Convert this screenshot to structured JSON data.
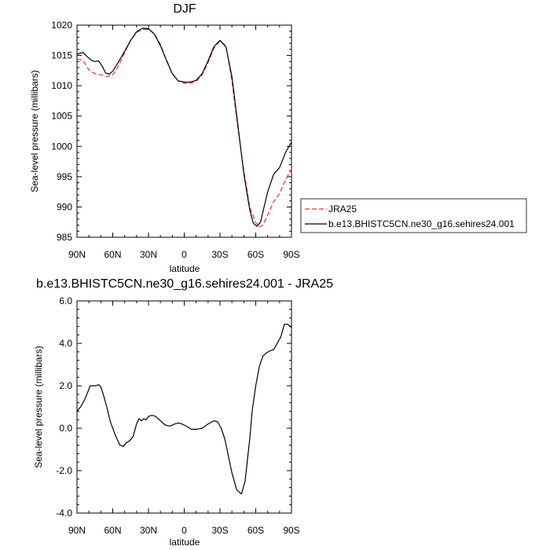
{
  "chart_data": [
    {
      "type": "line",
      "title": "DJF",
      "xlabel": "latitude",
      "ylabel": "Sea-level pressure (millibars)",
      "xlim": [
        90,
        -90
      ],
      "ylim": [
        985,
        1020
      ],
      "x_ticks": [
        90,
        60,
        30,
        0,
        -30,
        -60,
        -90
      ],
      "x_tick_labels": [
        "90N",
        "60N",
        "30N",
        "0",
        "30S",
        "60S",
        "90S"
      ],
      "y_ticks": [
        985,
        990,
        995,
        1000,
        1005,
        1010,
        1015,
        1020
      ],
      "y_tick_labels": [
        "985",
        "990",
        "995",
        "1000",
        "1005",
        "1010",
        "1015",
        "1020"
      ],
      "legend": "right",
      "series": [
        {
          "name": "JRA25",
          "color": "#e8302c",
          "style": "dashed",
          "x": [
            90,
            85,
            80,
            75,
            70,
            65,
            60,
            55,
            50,
            45,
            40,
            35,
            30,
            25,
            20,
            15,
            10,
            5,
            0,
            -5,
            -10,
            -15,
            -20,
            -25,
            -30,
            -35,
            -40,
            -45,
            -50,
            -55,
            -60,
            -63,
            -66,
            -70,
            -75,
            -80,
            -85,
            -90
          ],
          "y": [
            1014.4,
            1014.2,
            1012.6,
            1012.0,
            1011.8,
            1011.5,
            1011.8,
            1013.3,
            1015.5,
            1017.5,
            1018.8,
            1019.3,
            1019.3,
            1018.6,
            1016.8,
            1014.3,
            1012.0,
            1010.8,
            1010.4,
            1010.4,
            1010.7,
            1011.8,
            1013.8,
            1016.2,
            1017.4,
            1016.6,
            1010.8,
            1003.0,
            996.0,
            990.0,
            987.4,
            986.7,
            987.0,
            988.7,
            990.9,
            992.2,
            994.5,
            996.2
          ]
        },
        {
          "name": "b.e13.BHISTC5CN.ne30_g16.sehires24.001",
          "color": "#000000",
          "style": "solid",
          "x": [
            90,
            85,
            82,
            78,
            75,
            72,
            69,
            66,
            63,
            60,
            55,
            50,
            45,
            40,
            35,
            30,
            25,
            20,
            15,
            10,
            5,
            0,
            -5,
            -10,
            -15,
            -20,
            -25,
            -30,
            -35,
            -40,
            -45,
            -50,
            -55,
            -58,
            -61,
            -64,
            -67,
            -70,
            -75,
            -80,
            -85,
            -90
          ],
          "y": [
            1015.2,
            1015.5,
            1014.9,
            1014.2,
            1014.0,
            1014.1,
            1013.3,
            1012.1,
            1011.9,
            1012.4,
            1014.0,
            1015.7,
            1017.5,
            1018.9,
            1019.5,
            1019.4,
            1018.5,
            1016.6,
            1014.2,
            1012.0,
            1010.8,
            1010.6,
            1010.6,
            1010.9,
            1012.0,
            1014.1,
            1016.5,
            1017.5,
            1016.4,
            1011.5,
            1003.5,
            995.5,
            989.5,
            987.3,
            986.8,
            987.5,
            990.0,
            992.5,
            995.4,
            996.5,
            999.0,
            1000.7
          ]
        }
      ]
    },
    {
      "type": "line",
      "title": "b.e13.BHISTC5CN.ne30_g16.sehires24.001 - JRA25",
      "xlabel": "latitude",
      "ylabel": "Sea-level pressure (millibars)",
      "xlim": [
        90,
        -90
      ],
      "ylim": [
        -4.0,
        6.0
      ],
      "x_ticks": [
        90,
        60,
        30,
        0,
        -30,
        -60,
        -90
      ],
      "x_tick_labels": [
        "90N",
        "60N",
        "30N",
        "0",
        "30S",
        "60S",
        "90S"
      ],
      "y_ticks": [
        -4,
        -2,
        0,
        2,
        4,
        6
      ],
      "y_tick_labels": [
        "-4.0",
        "-2.0",
        "0.0",
        "2.0",
        "4.0",
        "6.0"
      ],
      "series": [
        {
          "color": "#000000",
          "style": "solid",
          "x": [
            90,
            87,
            84,
            81,
            79,
            77,
            74,
            72,
            70,
            68,
            65,
            62,
            58,
            54,
            51,
            49,
            46,
            43,
            40,
            38,
            36,
            34,
            32,
            30,
            28,
            26,
            24,
            20,
            16,
            12,
            8,
            5,
            2,
            0,
            -3,
            -6,
            -10,
            -15,
            -20,
            -25,
            -28,
            -31,
            -34,
            -37,
            -40,
            -44,
            -48,
            -51,
            -53,
            -55,
            -57,
            -60,
            -63,
            -66,
            -69,
            -72,
            -75,
            -78,
            -81,
            -84,
            -87,
            -90
          ],
          "y": [
            0.8,
            1.0,
            1.3,
            1.7,
            2.0,
            2.0,
            2.0,
            2.05,
            1.95,
            1.6,
            1.0,
            0.3,
            -0.3,
            -0.8,
            -0.85,
            -0.7,
            -0.6,
            -0.4,
            0.2,
            0.45,
            0.35,
            0.45,
            0.4,
            0.55,
            0.6,
            0.6,
            0.55,
            0.35,
            0.15,
            0.1,
            0.2,
            0.25,
            0.2,
            0.15,
            0.05,
            -0.05,
            -0.05,
            0.0,
            0.2,
            0.35,
            0.3,
            0.0,
            -0.5,
            -1.3,
            -2.1,
            -2.9,
            -3.1,
            -2.5,
            -1.5,
            -0.5,
            0.8,
            2.0,
            2.9,
            3.4,
            3.55,
            3.65,
            3.7,
            4.0,
            4.3,
            4.9,
            4.9,
            4.75
          ]
        }
      ]
    }
  ]
}
